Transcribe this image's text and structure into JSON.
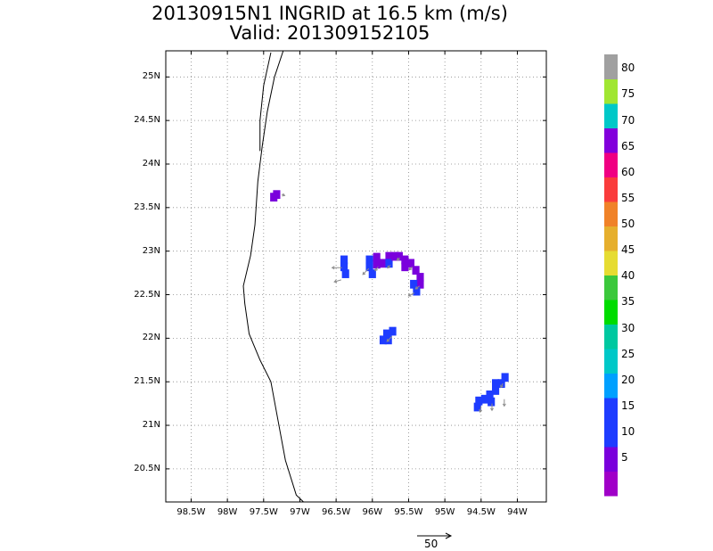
{
  "title": {
    "line1": "20130915N1 INGRID at 16.5 km (m/s)",
    "line2": "Valid: 201309152105"
  },
  "map": {
    "lat_labels": [
      "25N",
      "24.5N",
      "24N",
      "23.5N",
      "23N",
      "22.5N",
      "22N",
      "21.5N",
      "21N",
      "20.5N"
    ],
    "lon_labels": [
      "98.5W",
      "98W",
      "97.5W",
      "97W",
      "96.5W",
      "96W",
      "95.5W",
      "95W",
      "94.5W",
      "94W"
    ],
    "lon_range": [
      -98.85,
      -93.6
    ],
    "lat_range": [
      20.12,
      25.3
    ],
    "coastline": [
      [
        -97.23,
        25.3
      ],
      [
        -97.35,
        25.0
      ],
      [
        -97.45,
        24.6
      ],
      [
        -97.52,
        24.2
      ],
      [
        -97.58,
        23.8
      ],
      [
        -97.62,
        23.3
      ],
      [
        -97.68,
        22.95
      ],
      [
        -97.78,
        22.6
      ],
      [
        -97.76,
        22.4
      ],
      [
        -97.7,
        22.05
      ],
      [
        -97.55,
        21.75
      ],
      [
        -97.4,
        21.5
      ],
      [
        -97.3,
        21.05
      ],
      [
        -97.2,
        20.6
      ],
      [
        -97.05,
        20.2
      ],
      [
        -96.95,
        20.12
      ]
    ],
    "lagoon": [
      [
        -97.4,
        25.28
      ],
      [
        -97.5,
        24.9
      ],
      [
        -97.55,
        24.5
      ],
      [
        -97.55,
        24.15
      ]
    ],
    "wind_cells": [
      {
        "lon": -97.32,
        "lat": 23.65,
        "speed": 5
      },
      {
        "lon": -97.36,
        "lat": 23.62,
        "speed": 5
      },
      {
        "lon": -96.39,
        "lat": 22.9,
        "speed": 17
      },
      {
        "lon": -96.39,
        "lat": 22.82,
        "speed": 17
      },
      {
        "lon": -96.37,
        "lat": 22.74,
        "speed": 17
      },
      {
        "lon": -96.04,
        "lat": 22.9,
        "speed": 17
      },
      {
        "lon": -96.04,
        "lat": 22.82,
        "speed": 17
      },
      {
        "lon": -96.0,
        "lat": 22.74,
        "speed": 17
      },
      {
        "lon": -95.94,
        "lat": 22.93,
        "speed": 5
      },
      {
        "lon": -95.94,
        "lat": 22.85,
        "speed": 5
      },
      {
        "lon": -95.86,
        "lat": 22.86,
        "speed": 8
      },
      {
        "lon": -95.77,
        "lat": 22.94,
        "speed": 5
      },
      {
        "lon": -95.77,
        "lat": 22.86,
        "speed": 10
      },
      {
        "lon": -95.69,
        "lat": 22.94,
        "speed": 5
      },
      {
        "lon": -95.63,
        "lat": 22.94,
        "speed": 5
      },
      {
        "lon": -95.55,
        "lat": 22.9,
        "speed": 5
      },
      {
        "lon": -95.55,
        "lat": 22.82,
        "speed": 5
      },
      {
        "lon": -95.47,
        "lat": 22.86,
        "speed": 5
      },
      {
        "lon": -95.4,
        "lat": 22.78,
        "speed": 5
      },
      {
        "lon": -95.34,
        "lat": 22.7,
        "speed": 5
      },
      {
        "lon": -95.34,
        "lat": 22.62,
        "speed": 5
      },
      {
        "lon": -95.39,
        "lat": 22.54,
        "speed": 12
      },
      {
        "lon": -95.43,
        "lat": 22.62,
        "speed": 12
      },
      {
        "lon": -95.72,
        "lat": 22.08,
        "speed": 17
      },
      {
        "lon": -95.8,
        "lat": 22.05,
        "speed": 17
      },
      {
        "lon": -95.85,
        "lat": 21.98,
        "speed": 17
      },
      {
        "lon": -95.78,
        "lat": 21.98,
        "speed": 17
      },
      {
        "lon": -94.17,
        "lat": 21.55,
        "speed": 12
      },
      {
        "lon": -94.22,
        "lat": 21.48,
        "speed": 12
      },
      {
        "lon": -94.3,
        "lat": 21.48,
        "speed": 12
      },
      {
        "lon": -94.3,
        "lat": 21.4,
        "speed": 12
      },
      {
        "lon": -94.38,
        "lat": 21.35,
        "speed": 12
      },
      {
        "lon": -94.36,
        "lat": 21.27,
        "speed": 17
      },
      {
        "lon": -94.45,
        "lat": 21.3,
        "speed": 12
      },
      {
        "lon": -94.53,
        "lat": 21.28,
        "speed": 12
      },
      {
        "lon": -94.55,
        "lat": 21.21,
        "speed": 12
      }
    ],
    "wind_vectors": [
      {
        "lon": -97.25,
        "lat": 23.65,
        "u": 3,
        "v": -1
      },
      {
        "lon": -96.42,
        "lat": 22.81,
        "u": -10,
        "v": 0
      },
      {
        "lon": -96.43,
        "lat": 22.67,
        "u": -7,
        "v": -2
      },
      {
        "lon": -96.05,
        "lat": 22.8,
        "u": -6,
        "v": -6
      },
      {
        "lon": -95.92,
        "lat": 22.82,
        "u": -3,
        "v": -4
      },
      {
        "lon": -95.75,
        "lat": 22.84,
        "u": -3,
        "v": -3
      },
      {
        "lon": -95.62,
        "lat": 22.92,
        "u": -3,
        "v": -2
      },
      {
        "lon": -95.45,
        "lat": 22.82,
        "u": -3,
        "v": -3
      },
      {
        "lon": -95.35,
        "lat": 22.6,
        "u": -4,
        "v": -3
      },
      {
        "lon": -95.42,
        "lat": 22.52,
        "u": -6,
        "v": -3
      },
      {
        "lon": -95.73,
        "lat": 22.02,
        "u": -5,
        "v": -5
      },
      {
        "lon": -94.2,
        "lat": 21.48,
        "u": -2,
        "v": -4
      },
      {
        "lon": -94.18,
        "lat": 21.3,
        "u": 0,
        "v": -7
      },
      {
        "lon": -94.35,
        "lat": 21.25,
        "u": 0,
        "v": -7
      },
      {
        "lon": -94.5,
        "lat": 21.22,
        "u": -1,
        "v": -6
      }
    ],
    "vector_scale_label": "50",
    "grid": "dotted"
  },
  "colorbar": {
    "labels": [
      "5",
      "10",
      "15",
      "20",
      "25",
      "30",
      "35",
      "40",
      "45",
      "50",
      "55",
      "60",
      "65",
      "70",
      "75",
      "80"
    ],
    "colors": [
      "#a000c8",
      "#7a00dc",
      "#1e3cff",
      "#1e3cff",
      "#00a0ff",
      "#00c8c8",
      "#00c8a0",
      "#00dc00",
      "#3cc83c",
      "#e6dc32",
      "#e6af2d",
      "#f08228",
      "#fa3c3c",
      "#f00082",
      "#8200dc",
      "#00c8c8",
      "#a0e632",
      "#a0a0a0"
    ]
  }
}
